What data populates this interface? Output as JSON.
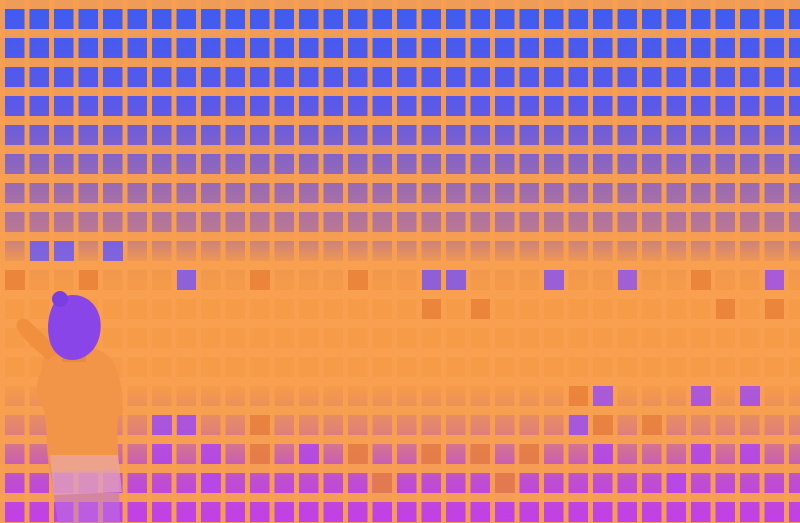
{
  "scene": {
    "subject": "child-looking-at-grid-wall",
    "palette": {
      "wall_top": "#3d5cf0",
      "wall_bottom": "#c23ee8",
      "orange": "#f69b48",
      "orange_dark": "#e9813a",
      "child_silhouette": "#f39548",
      "hair": "#8a45e8"
    }
  }
}
